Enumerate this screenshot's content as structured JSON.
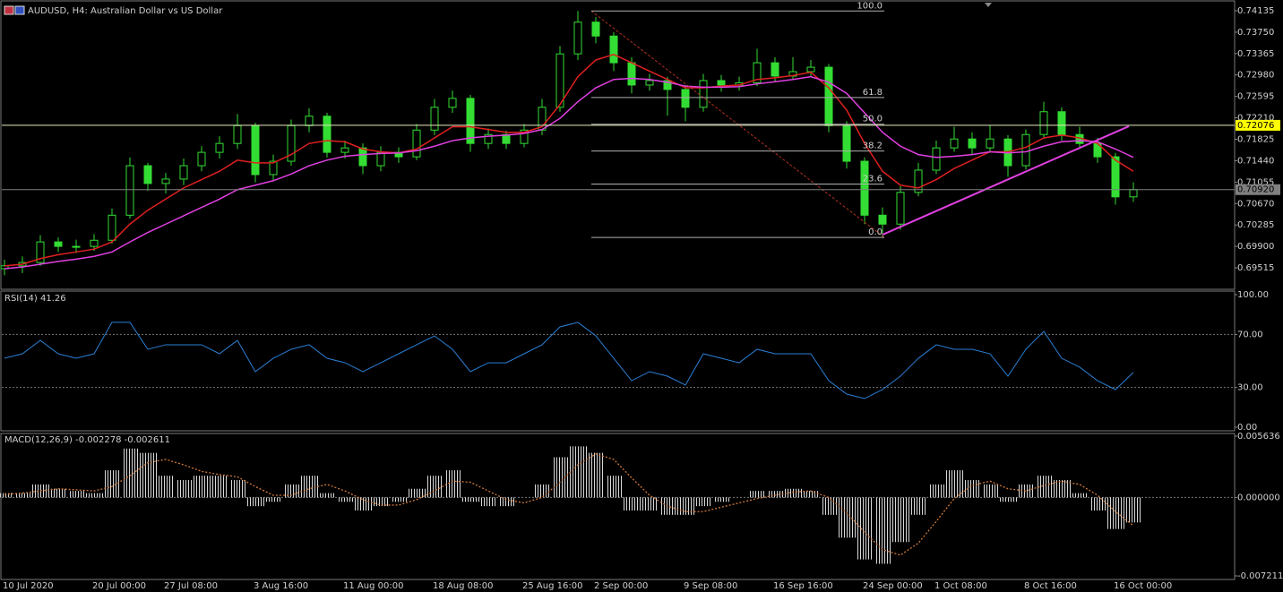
{
  "chart_data": [
    {
      "type": "candlestick",
      "title": "AUDUSD, H4:  Australian Dollar vs US Dollar",
      "x": [
        "10 Jul 2020",
        null,
        null,
        null,
        null,
        "20 Jul 00:00",
        null,
        null,
        null,
        "27 Jul 08:00",
        null,
        null,
        null,
        null,
        "3 Aug 16:00",
        null,
        null,
        null,
        null,
        "11 Aug 00:00",
        null,
        null,
        null,
        null,
        "18 Aug 08:00",
        null,
        null,
        null,
        null,
        "25 Aug 16:00",
        null,
        null,
        null,
        "2 Sep 00:00",
        null,
        null,
        null,
        null,
        "9 Sep 08:00",
        null,
        null,
        null,
        null,
        "16 Sep 16:00",
        null,
        null,
        null,
        null,
        "24 Sep 00:00",
        null,
        null,
        null,
        "1 Oct 08:00",
        null,
        null,
        null,
        null,
        "8 Oct 16:00",
        null,
        null,
        null,
        null,
        "16 Oct 00:00",
        null
      ],
      "candles": [
        [
          0.695,
          0.6966,
          0.6938,
          0.6955
        ],
        [
          0.6955,
          0.6972,
          0.6942,
          0.6961
        ],
        [
          0.6961,
          0.701,
          0.6955,
          0.6998
        ],
        [
          0.6998,
          0.7006,
          0.698,
          0.699
        ],
        [
          0.699,
          0.7002,
          0.6978,
          0.699
        ],
        [
          0.699,
          0.7012,
          0.6982,
          0.7001
        ],
        [
          0.7001,
          0.7058,
          0.6995,
          0.7046
        ],
        [
          0.7046,
          0.715,
          0.704,
          0.7135
        ],
        [
          0.7135,
          0.714,
          0.709,
          0.7103
        ],
        [
          0.7103,
          0.7122,
          0.7085,
          0.7111
        ],
        [
          0.7111,
          0.7148,
          0.71,
          0.7135
        ],
        [
          0.7135,
          0.717,
          0.7125,
          0.7159
        ],
        [
          0.7159,
          0.7188,
          0.7148,
          0.7175
        ],
        [
          0.7175,
          0.7228,
          0.7165,
          0.7207
        ],
        [
          0.7207,
          0.7212,
          0.7105,
          0.7119
        ],
        [
          0.7119,
          0.7155,
          0.7108,
          0.7143
        ],
        [
          0.7143,
          0.7218,
          0.7135,
          0.7207
        ],
        [
          0.7207,
          0.7238,
          0.7195,
          0.7224
        ],
        [
          0.7224,
          0.723,
          0.715,
          0.7159
        ],
        [
          0.7159,
          0.718,
          0.7148,
          0.7167
        ],
        [
          0.7167,
          0.7175,
          0.712,
          0.7135
        ],
        [
          0.7135,
          0.717,
          0.7125,
          0.7159
        ],
        [
          0.7159,
          0.7168,
          0.714,
          0.7151
        ],
        [
          0.7151,
          0.721,
          0.7145,
          0.7199
        ],
        [
          0.7199,
          0.7255,
          0.719,
          0.724
        ],
        [
          0.724,
          0.727,
          0.723,
          0.7256
        ],
        [
          0.7256,
          0.7262,
          0.716,
          0.7175
        ],
        [
          0.7175,
          0.7202,
          0.7165,
          0.7191
        ],
        [
          0.7191,
          0.7198,
          0.7165,
          0.7175
        ],
        [
          0.7175,
          0.721,
          0.7168,
          0.7199
        ],
        [
          0.7199,
          0.7255,
          0.719,
          0.724
        ],
        [
          0.724,
          0.735,
          0.7232,
          0.7336
        ],
        [
          0.7336,
          0.7413,
          0.7325,
          0.7393
        ],
        [
          0.7393,
          0.7402,
          0.7355,
          0.7368
        ],
        [
          0.7368,
          0.7375,
          0.7305,
          0.732
        ],
        [
          0.732,
          0.733,
          0.7265,
          0.728
        ],
        [
          0.728,
          0.73,
          0.727,
          0.7288
        ],
        [
          0.7288,
          0.7295,
          0.7225,
          0.7272
        ],
        [
          0.7272,
          0.728,
          0.7215,
          0.724
        ],
        [
          0.724,
          0.73,
          0.7232,
          0.7288
        ],
        [
          0.7288,
          0.7298,
          0.7268,
          0.728
        ],
        [
          0.728,
          0.7295,
          0.727,
          0.7284
        ],
        [
          0.7284,
          0.7345,
          0.7278,
          0.732
        ],
        [
          0.732,
          0.733,
          0.7285,
          0.7296
        ],
        [
          0.7296,
          0.733,
          0.729,
          0.7304
        ],
        [
          0.7304,
          0.7325,
          0.7295,
          0.7312
        ],
        [
          0.7312,
          0.7318,
          0.7195,
          0.7207
        ],
        [
          0.7207,
          0.7215,
          0.713,
          0.7143
        ],
        [
          0.7143,
          0.715,
          0.703,
          0.7046
        ],
        [
          0.7046,
          0.706,
          0.7006,
          0.703
        ],
        [
          0.703,
          0.7098,
          0.702,
          0.7087
        ],
        [
          0.7087,
          0.714,
          0.708,
          0.7127
        ],
        [
          0.7127,
          0.718,
          0.712,
          0.7167
        ],
        [
          0.7167,
          0.7205,
          0.716,
          0.7183
        ],
        [
          0.7183,
          0.7195,
          0.7155,
          0.7167
        ],
        [
          0.7167,
          0.7208,
          0.716,
          0.7183
        ],
        [
          0.7183,
          0.719,
          0.7115,
          0.7135
        ],
        [
          0.7135,
          0.72,
          0.7128,
          0.7191
        ],
        [
          0.7191,
          0.725,
          0.7185,
          0.7232
        ],
        [
          0.7232,
          0.724,
          0.718,
          0.7191
        ],
        [
          0.7191,
          0.7205,
          0.7165,
          0.7175
        ],
        [
          0.7175,
          0.7185,
          0.714,
          0.7151
        ],
        [
          0.7151,
          0.7158,
          0.7065,
          0.7079
        ],
        [
          0.7079,
          0.7105,
          0.707,
          0.7092
        ]
      ],
      "color": "#33dd33",
      "overlays": [
        {
          "color": "#e02020",
          "values": [
            0.6955,
            0.6958,
            0.6968,
            0.6975,
            0.698,
            0.6985,
            0.6998,
            0.703,
            0.7055,
            0.7075,
            0.7095,
            0.711,
            0.7125,
            0.7145,
            0.714,
            0.714,
            0.7155,
            0.7175,
            0.718,
            0.7178,
            0.7165,
            0.716,
            0.7158,
            0.7165,
            0.7185,
            0.7205,
            0.7205,
            0.72,
            0.7195,
            0.7195,
            0.7205,
            0.7245,
            0.7295,
            0.7325,
            0.7335,
            0.732,
            0.7305,
            0.729,
            0.7275,
            0.7275,
            0.7278,
            0.728,
            0.729,
            0.7293,
            0.7297,
            0.7303,
            0.7275,
            0.7235,
            0.7175,
            0.7125,
            0.71,
            0.7095,
            0.711,
            0.713,
            0.7145,
            0.716,
            0.716,
            0.7168,
            0.7185,
            0.719,
            0.7185,
            0.7175,
            0.7145,
            0.7125
          ]
        },
        {
          "color": "#e040e0",
          "values": [
            0.695,
            0.6953,
            0.6958,
            0.6963,
            0.6967,
            0.6972,
            0.698,
            0.6998,
            0.7015,
            0.703,
            0.7045,
            0.706,
            0.7075,
            0.7092,
            0.71,
            0.7108,
            0.712,
            0.7135,
            0.7145,
            0.7152,
            0.7155,
            0.7157,
            0.7158,
            0.7162,
            0.717,
            0.718,
            0.7185,
            0.7188,
            0.719,
            0.7193,
            0.72,
            0.722,
            0.725,
            0.7275,
            0.729,
            0.7292,
            0.729,
            0.7285,
            0.7278,
            0.7276,
            0.7276,
            0.7277,
            0.7282,
            0.7286,
            0.729,
            0.7295,
            0.7285,
            0.7265,
            0.723,
            0.7195,
            0.717,
            0.7155,
            0.715,
            0.7152,
            0.7155,
            0.716,
            0.7158,
            0.716,
            0.717,
            0.7178,
            0.718,
            0.7178,
            0.7165,
            0.715
          ]
        }
      ],
      "levels": [
        {
          "value": 0.72076,
          "color": "#ffff00"
        },
        {
          "value": 0.7092,
          "label": "0.70920",
          "color": "#808080"
        }
      ],
      "fib": {
        "high": 0.7413,
        "low": 0.7006,
        "color": "#b0b0b0",
        "trend_color": "#b03020",
        "levels": [
          {
            "value": 100,
            "label": "100.0"
          },
          61.8,
          {
            "value": 50,
            "label": "50.0"
          },
          38.2,
          23.6,
          {
            "value": 0,
            "label": "0.0"
          }
        ]
      },
      "trendline": {
        "values": [
          0.7011,
          0.7206
        ],
        "color": "#e040e0"
      },
      "ylim": [
        0.69129,
        0.74328
      ],
      "yticks": [
        0.74135,
        {
          "value": 0.7375,
          "label": "0.73750"
        },
        0.73365,
        {
          "value": 0.7298,
          "label": "0.72980"
        },
        0.72595,
        {
          "value": 0.7221,
          "label": "0.72210"
        },
        0.71825,
        {
          "value": 0.7144,
          "label": "0.71440"
        },
        0.71055,
        {
          "value": 0.7067,
          "label": "0.70670"
        },
        0.70285,
        {
          "value": 0.699,
          "label": "0.69900"
        },
        0.69515
      ],
      "grid": false
    },
    {
      "type": "line",
      "title": "RSI(14) 41.26",
      "values": [
        52.0,
        55.4,
        65.5,
        55.4,
        52.0,
        55.4,
        79.1,
        79.1,
        58.8,
        62.2,
        62.2,
        62.2,
        55.4,
        65.5,
        41.9,
        52.0,
        58.8,
        62.2,
        52.0,
        48.6,
        41.9,
        48.6,
        55.4,
        62.2,
        68.9,
        58.8,
        41.9,
        48.6,
        48.6,
        55.4,
        62.2,
        75.7,
        79.1,
        68.9,
        52.0,
        35.1,
        41.9,
        38.5,
        31.8,
        55.4,
        52.0,
        48.6,
        58.8,
        55.4,
        55.4,
        55.4,
        35.1,
        25.0,
        21.6,
        28.4,
        38.5,
        52.0,
        62.2,
        58.8,
        58.8,
        55.4,
        38.5,
        58.8,
        72.3,
        52.0,
        45.3,
        35.1,
        28.4,
        41.3
      ],
      "color": "#2a7fd4",
      "ylim": [
        0,
        100
      ],
      "yticks": [
        {
          "value": 100,
          "label": "100.00"
        },
        {
          "value": 70,
          "label": "70.00"
        },
        {
          "value": 30,
          "label": "30.00"
        },
        {
          "value": 0,
          "label": "0.00"
        }
      ],
      "grid": true
    },
    {
      "type": "macd",
      "title": "MACD(12,26,9) -0.002278 -0.002611",
      "series": [
        {
          "style": "histogram",
          "color": "#d8d8d8",
          "values": [
            0.0004,
            0.0004,
            0.0012,
            0.0008,
            0.0006,
            0.0004,
            0.0025,
            0.0045,
            0.0041,
            0.002,
            0.0016,
            0.002,
            0.002,
            0.0016,
            -0.0008,
            -0.0004,
            0.0012,
            0.002,
            0.0004,
            -0.0004,
            -0.0012,
            -0.0008,
            -0.0004,
            0.0008,
            0.002,
            0.0025,
            -0.0004,
            -0.0008,
            -0.0008,
            0.0,
            0.0012,
            0.0037,
            0.0047,
            0.0041,
            0.002,
            -0.0012,
            -0.0012,
            -0.0016,
            -0.0016,
            -0.0008,
            -0.0004,
            0.0,
            0.0006,
            0.0006,
            0.0008,
            0.0006,
            -0.0016,
            -0.0037,
            -0.0057,
            -0.0061,
            -0.0041,
            -0.0016,
            0.0012,
            0.0025,
            0.0016,
            0.0012,
            -0.0004,
            0.0012,
            0.002,
            0.0016,
            0.0004,
            -0.0012,
            -0.0029,
            -0.0023
          ]
        },
        {
          "style": "dotted",
          "color": "#d07838",
          "values": [
            0.0003,
            0.0004,
            0.0006,
            0.0008,
            0.0007,
            0.0006,
            0.001,
            0.002,
            0.0032,
            0.0035,
            0.003,
            0.0024,
            0.0021,
            0.0019,
            0.001,
            0.0002,
            0.0002,
            0.0008,
            0.0012,
            0.0006,
            -0.0002,
            -0.0007,
            -0.0007,
            -0.0002,
            0.0006,
            0.0015,
            0.0014,
            0.0006,
            -0.0002,
            -0.0005,
            0.0,
            0.0014,
            0.003,
            0.004,
            0.0035,
            0.0018,
            0.0002,
            -0.0008,
            -0.0013,
            -0.0013,
            -0.0009,
            -0.0005,
            -0.0001,
            0.0002,
            0.0005,
            0.0006,
            0.0,
            -0.0014,
            -0.0032,
            -0.0048,
            -0.0053,
            -0.0042,
            -0.0022,
            -0.0001,
            0.0011,
            0.0015,
            0.0008,
            0.0006,
            0.0011,
            0.0015,
            0.0012,
            0.0002,
            -0.0013,
            -0.0026
          ]
        }
      ],
      "ylim": [
        -0.007211,
        0.005636
      ],
      "yticks": [
        0.005636,
        {
          "value": 0,
          "label": "0.000000"
        },
        -0.007211
      ],
      "grid": true
    }
  ]
}
